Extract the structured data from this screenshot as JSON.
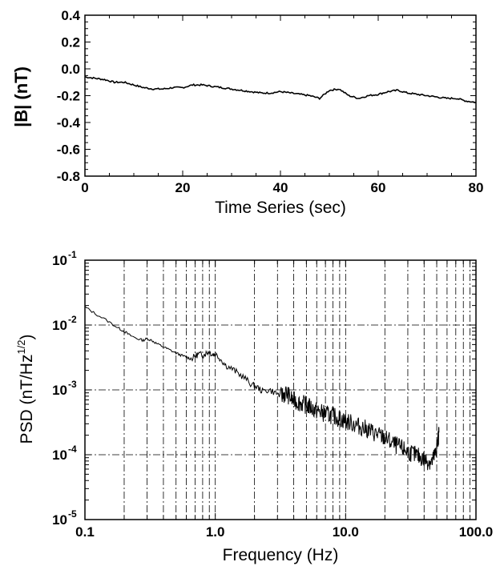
{
  "chart_data": [
    {
      "type": "line",
      "xlabel": "Time Series (sec)",
      "ylabel": "|B| (nT)",
      "xlim": [
        0,
        80
      ],
      "ylim": [
        -0.8,
        0.4
      ],
      "xticks": [
        "0",
        "20",
        "40",
        "60",
        "80"
      ],
      "yticks": [
        "0.4",
        "0.2",
        "0.0",
        "-0.2",
        "-0.4",
        "-0.6",
        "-0.8"
      ],
      "grid": false,
      "series": [
        {
          "x": [
            0,
            2,
            4,
            6,
            8,
            10,
            12,
            14,
            16,
            18,
            20,
            22,
            24,
            26,
            28,
            30,
            32,
            34,
            36,
            38,
            40,
            42,
            44,
            46,
            48,
            50,
            52,
            54,
            56,
            58,
            60,
            62,
            64,
            66,
            68,
            70,
            72,
            74,
            76,
            78,
            80
          ],
          "y": [
            -0.06,
            -0.07,
            -0.08,
            -0.1,
            -0.1,
            -0.12,
            -0.14,
            -0.15,
            -0.15,
            -0.14,
            -0.14,
            -0.12,
            -0.12,
            -0.13,
            -0.14,
            -0.15,
            -0.16,
            -0.17,
            -0.18,
            -0.18,
            -0.17,
            -0.18,
            -0.19,
            -0.2,
            -0.22,
            -0.16,
            -0.15,
            -0.2,
            -0.22,
            -0.2,
            -0.19,
            -0.17,
            -0.16,
            -0.18,
            -0.19,
            -0.2,
            -0.21,
            -0.22,
            -0.22,
            -0.24,
            -0.25
          ]
        }
      ]
    },
    {
      "type": "line",
      "xlabel": "Frequency (Hz)",
      "ylabel": "PSD (nT/Hz",
      "ylabel_sup": "1/2",
      "ylabel_end": ")",
      "xscale": "log",
      "yscale": "log",
      "xlim": [
        0.1,
        100
      ],
      "ylim": [
        1e-05,
        0.1
      ],
      "xticks": [
        "0.1",
        "1.0",
        "10.0",
        "100.0"
      ],
      "yticks": [
        {
          "base": "10",
          "exp": "-1"
        },
        {
          "base": "10",
          "exp": "-2"
        },
        {
          "base": "10",
          "exp": "-3"
        },
        {
          "base": "10",
          "exp": "-4"
        },
        {
          "base": "10",
          "exp": "-5"
        }
      ],
      "grid": true,
      "series": [
        {
          "x": [
            0.1,
            0.12,
            0.15,
            0.18,
            0.2,
            0.22,
            0.25,
            0.28,
            0.3,
            0.33,
            0.36,
            0.4,
            0.45,
            0.5,
            0.55,
            0.6,
            0.65,
            0.7,
            0.75,
            0.8,
            0.85,
            0.9,
            0.95,
            1.0,
            1.1,
            1.2,
            1.35,
            1.5,
            1.7,
            1.9,
            2.1,
            2.3,
            2.6,
            2.9,
            3.2,
            3.5,
            3.9,
            4.3,
            4.8,
            5.3,
            5.9,
            6.5,
            7.2,
            8.0,
            9.0,
            10.0,
            11.5,
            13.0,
            15.0,
            17.0,
            19.0,
            21.0,
            24.0,
            27.0,
            30.0,
            34.0,
            38.0,
            42.0,
            46.0,
            49.0,
            51.0,
            52.0
          ],
          "y": [
            0.019,
            0.015,
            0.0115,
            0.009,
            0.008,
            0.007,
            0.0062,
            0.0058,
            0.0062,
            0.0057,
            0.0051,
            0.0046,
            0.0041,
            0.0037,
            0.0034,
            0.0032,
            0.003,
            0.0033,
            0.0036,
            0.0034,
            0.0037,
            0.0039,
            0.0035,
            0.0036,
            0.003,
            0.0024,
            0.0021,
            0.0018,
            0.0015,
            0.0012,
            0.0011,
            0.00095,
            0.001,
            0.0009,
            0.0008,
            0.0009,
            0.0007,
            0.00065,
            0.0006,
            0.00055,
            0.00048,
            0.00045,
            0.00042,
            0.0004,
            0.00036,
            0.00033,
            0.0003,
            0.00027,
            0.00024,
            0.00021,
            0.00019,
            0.00017,
            0.00014,
            0.000125,
            0.000112,
            0.0001,
            9e-05,
            8e-05,
            7.8e-05,
            0.000105,
            0.00016,
            0.00022
          ]
        }
      ]
    }
  ]
}
